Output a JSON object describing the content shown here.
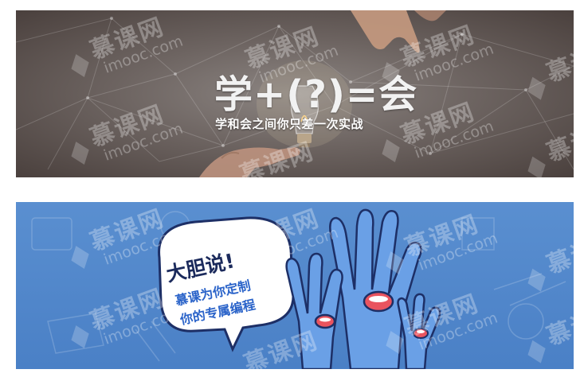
{
  "banners": [
    {
      "headline": "学+(?)=会",
      "subline": "学和会之间你只差一次实战"
    },
    {
      "bubble_title": "大胆说!",
      "bubble_line1": "慕课为你定制",
      "bubble_line2": "你的专属编程"
    }
  ],
  "watermark": {
    "brand_cn": "慕课网",
    "brand_en": "imooc.com"
  },
  "colors": {
    "banner1_bg": "#6d6461",
    "banner2_bg": "#4a80c6",
    "bubble_text": "#2a63c9",
    "mouth_red": "#e9545f"
  },
  "icons": [
    "lightbulb-icon",
    "hand-icon",
    "speech-bubble-icon",
    "flame-icon"
  ]
}
